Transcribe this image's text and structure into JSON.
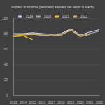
{
  "chart_data": {
    "type": "line",
    "title": "Numero di strutture prenotabili a Milano nei saloni in Marzo",
    "categories": [
      "2013",
      "2014",
      "2015",
      "2016",
      "2017",
      "2018",
      "2019",
      "2020",
      "2021",
      "2022"
    ],
    "series": [
      {
        "name": "2019",
        "color": "#c9c9f0",
        "values": [
          80,
          80,
          81,
          80,
          79,
          80,
          86,
          78,
          82,
          85
        ]
      },
      {
        "name": "2020",
        "color": "#a5a5a5",
        "values": [
          78,
          79,
          79,
          78,
          78,
          79,
          84,
          77,
          80,
          83
        ]
      },
      {
        "name": "2021",
        "color": "#ffc000",
        "values": [
          76,
          77,
          72,
          null,
          null,
          null,
          null,
          null,
          null,
          null
        ]
      },
      {
        "name": "2022",
        "color": "#e0b040",
        "values": [
          77,
          78,
          79,
          78,
          77,
          78,
          85,
          76,
          79,
          null
        ]
      }
    ],
    "ylim": [
      0,
      100
    ],
    "yticks": [
      0,
      20,
      40,
      60,
      80,
      100
    ],
    "grid": true,
    "legend": "top"
  }
}
